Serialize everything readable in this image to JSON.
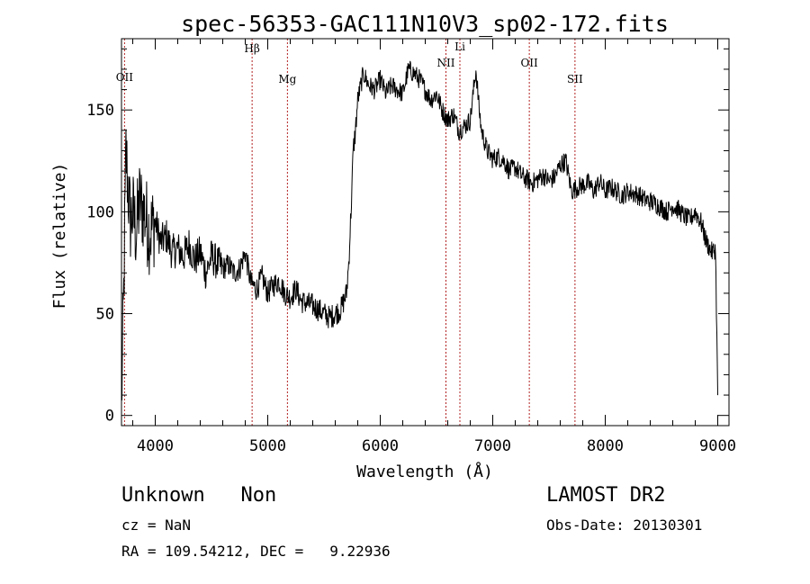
{
  "chart_data": {
    "type": "line",
    "title": "spec-56353-GAC111N10V3_sp02-172.fits",
    "xlabel": "Wavelength (Å)",
    "ylabel": "Flux (relative)",
    "xlim": [
      3700,
      9100
    ],
    "ylim": [
      -5,
      185
    ],
    "x_ticks": [
      4000,
      5000,
      6000,
      7000,
      8000,
      9000
    ],
    "y_ticks": [
      0,
      50,
      100,
      150
    ],
    "grid": false,
    "line_color": "#000000",
    "line_markers": {
      "color": "#b22222",
      "lines": [
        {
          "name": "OII",
          "x": 3727
        },
        {
          "name": "Hβ",
          "x": 4861
        },
        {
          "name": "Mg",
          "x": 5175
        },
        {
          "name": "NII",
          "x": 6584
        },
        {
          "name": "Li",
          "x": 6708
        },
        {
          "name": "OII",
          "x": 7325
        },
        {
          "name": "SII",
          "x": 7731
        }
      ]
    },
    "series": [
      {
        "x": [
          3700,
          3720,
          3740,
          3760,
          3780,
          3800,
          3830,
          3860,
          3900,
          3950,
          4000,
          4050,
          4100,
          4150,
          4200,
          4250,
          4300,
          4350,
          4400,
          4450,
          4500,
          4550,
          4600,
          4650,
          4700,
          4750,
          4800,
          4850,
          4900,
          4950,
          5000,
          5050,
          5100,
          5150,
          5200,
          5250,
          5300,
          5350,
          5400,
          5450,
          5500,
          5550,
          5600,
          5650,
          5700,
          5720,
          5740,
          5760,
          5780,
          5800,
          5850,
          5900,
          5950,
          6000,
          6050,
          6100,
          6150,
          6200,
          6250,
          6300,
          6350,
          6400,
          6450,
          6500,
          6550,
          6600,
          6650,
          6700,
          6750,
          6800,
          6850,
          6880,
          6900,
          6950,
          7000,
          7050,
          7100,
          7150,
          7200,
          7250,
          7300,
          7350,
          7400,
          7450,
          7500,
          7550,
          7600,
          7650,
          7700,
          7750,
          7800,
          7850,
          7900,
          7950,
          8000,
          8050,
          8100,
          8150,
          8200,
          8250,
          8300,
          8350,
          8400,
          8450,
          8500,
          8550,
          8600,
          8650,
          8700,
          8750,
          8800,
          8850,
          8900,
          8950,
          8980,
          9000
        ],
        "y": [
          5,
          60,
          130,
          110,
          95,
          100,
          90,
          105,
          100,
          90,
          95,
          85,
          88,
          80,
          82,
          78,
          84,
          76,
          80,
          70,
          78,
          75,
          72,
          74,
          70,
          72,
          80,
          65,
          62,
          68,
          60,
          64,
          66,
          60,
          58,
          62,
          56,
          55,
          54,
          52,
          50,
          48,
          50,
          52,
          60,
          75,
          100,
          130,
          140,
          155,
          168,
          162,
          160,
          165,
          158,
          162,
          160,
          158,
          170,
          168,
          165,
          160,
          155,
          158,
          150,
          145,
          148,
          140,
          142,
          145,
          170,
          150,
          140,
          130,
          126,
          127,
          125,
          120,
          122,
          118,
          116,
          114,
          116,
          118,
          115,
          117,
          123,
          125,
          110,
          112,
          113,
          114,
          110,
          115,
          110,
          112,
          110,
          108,
          110,
          109,
          108,
          106,
          105,
          104,
          102,
          100,
          103,
          101,
          98,
          96,
          100,
          95,
          85,
          80,
          82,
          10
        ]
      }
    ]
  },
  "info": {
    "left_line1": "Unknown   Non",
    "left_line2": "cz = NaN",
    "left_line3": "RA = 109.54212, DEC =   9.22936",
    "right_line1": "LAMOST DR2",
    "right_line2": "Obs-Date: 20130301"
  }
}
